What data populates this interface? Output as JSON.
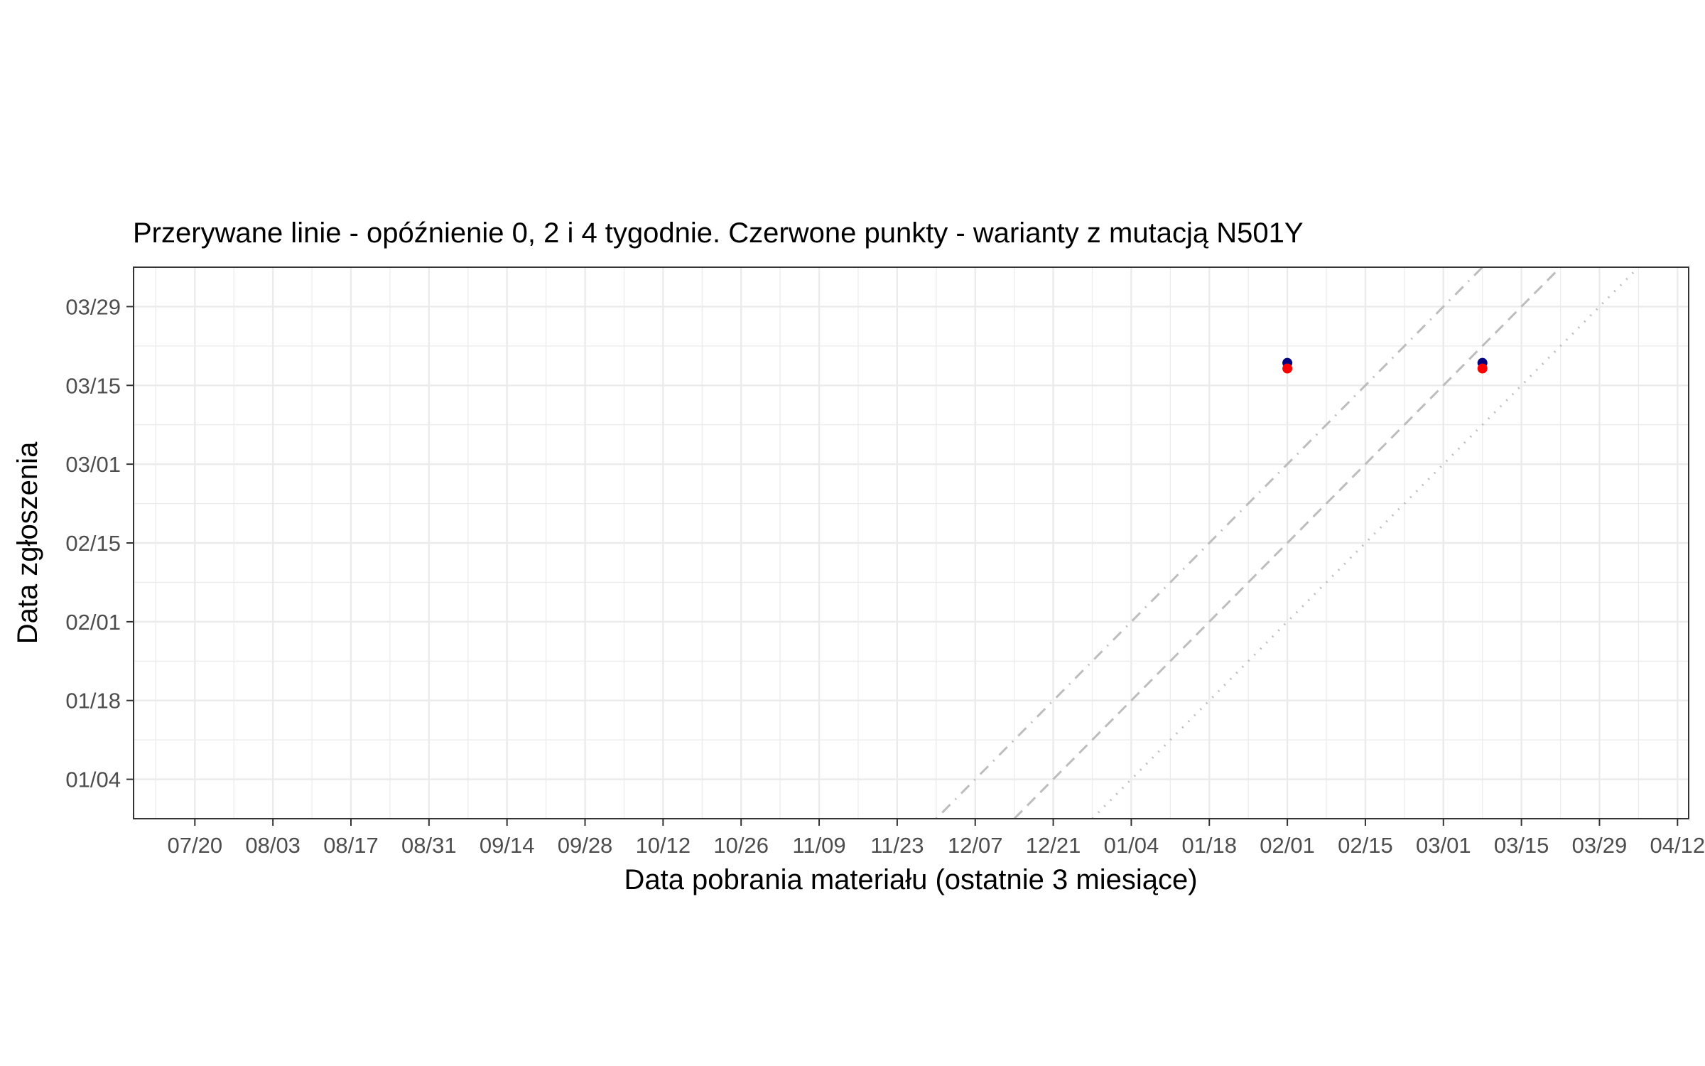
{
  "chart_data": {
    "type": "scatter",
    "subtitle": "Przerywane linie - opóźnienie 0, 2 i 4 tygodnie. Czerwone punkty - warianty z mutacją N501Y",
    "xlabel": "Data pobrania materiału (ostatnie 3 miesiące)",
    "ylabel": "Data zgłoszenia",
    "x_axis_type": "date",
    "y_axis_type": "date",
    "x_ticks": [
      "07/20",
      "08/03",
      "08/17",
      "08/31",
      "09/14",
      "09/28",
      "10/12",
      "10/26",
      "11/09",
      "11/23",
      "12/07",
      "12/21",
      "01/04",
      "01/18",
      "02/01",
      "02/15",
      "03/01",
      "03/15",
      "03/29",
      "04/12"
    ],
    "x_tick_dates": [
      "2020-07-20",
      "2020-08-03",
      "2020-08-17",
      "2020-08-31",
      "2020-09-14",
      "2020-09-28",
      "2020-10-12",
      "2020-10-26",
      "2020-11-09",
      "2020-11-23",
      "2020-12-07",
      "2020-12-21",
      "2021-01-04",
      "2021-01-18",
      "2021-02-01",
      "2021-02-15",
      "2021-03-01",
      "2021-03-15",
      "2021-03-29",
      "2021-04-12"
    ],
    "y_ticks": [
      "01/04",
      "01/18",
      "02/01",
      "02/15",
      "03/01",
      "03/15",
      "03/29"
    ],
    "y_tick_dates": [
      "2021-01-04",
      "2021-01-18",
      "2021-02-01",
      "2021-02-15",
      "2021-03-01",
      "2021-03-15",
      "2021-03-29"
    ],
    "xlim": [
      "2020-07-09",
      "2021-04-14"
    ],
    "ylim": [
      "2020-12-28",
      "2021-04-05"
    ],
    "grid": true,
    "reference_lines": [
      {
        "lag_weeks": 0,
        "style": "dotted",
        "color": "#bdbdbd"
      },
      {
        "lag_weeks": 2,
        "style": "dashed",
        "color": "#bdbdbd"
      },
      {
        "lag_weeks": 4,
        "style": "dotdash",
        "color": "#bdbdbd"
      }
    ],
    "series": [
      {
        "color": "#00007f",
        "points": [
          {
            "x": "2021-02-01",
            "y": "2021-03-19"
          },
          {
            "x": "2021-03-08",
            "y": "2021-03-19"
          }
        ]
      },
      {
        "color": "#ff0000",
        "points": [
          {
            "x": "2021-02-01",
            "y": "2021-03-18"
          },
          {
            "x": "2021-03-08",
            "y": "2021-03-18"
          }
        ]
      }
    ]
  }
}
